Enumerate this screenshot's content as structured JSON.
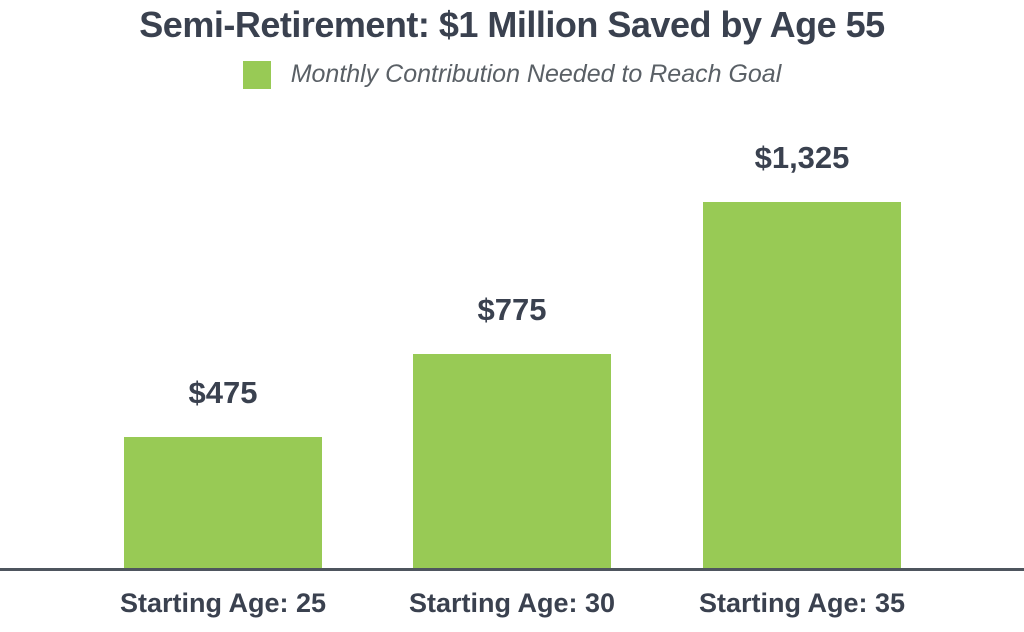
{
  "header": {
    "title": "Semi-Retirement: $1 Million Saved by Age 55"
  },
  "legend": {
    "label": "Monthly Contribution Needed to Reach Goal",
    "swatch_color": "#98CA55"
  },
  "chart_data": {
    "type": "bar",
    "title": "Semi-Retirement: $1 Million Saved by Age 55",
    "legend_entries": [
      "Monthly Contribution Needed to Reach Goal"
    ],
    "legend_position": "top",
    "grid": false,
    "categories": [
      "Starting Age: 25",
      "Starting Age: 30",
      "Starting Age: 35"
    ],
    "x_labels": [
      {
        "prefix": "Starting Age:",
        "value": "25"
      },
      {
        "prefix": "Starting Age:",
        "value": "30"
      },
      {
        "prefix": "Starting Age:",
        "value": "35"
      }
    ],
    "values": [
      475,
      775,
      1325
    ],
    "value_labels": [
      "$475",
      "$775",
      "$1,325"
    ],
    "xlabel": "",
    "ylabel": "",
    "ylim": [
      0,
      1325
    ],
    "bar_color": "#98CA55",
    "axis_line_color": "#4E555E",
    "text_color": "#3A414F"
  }
}
